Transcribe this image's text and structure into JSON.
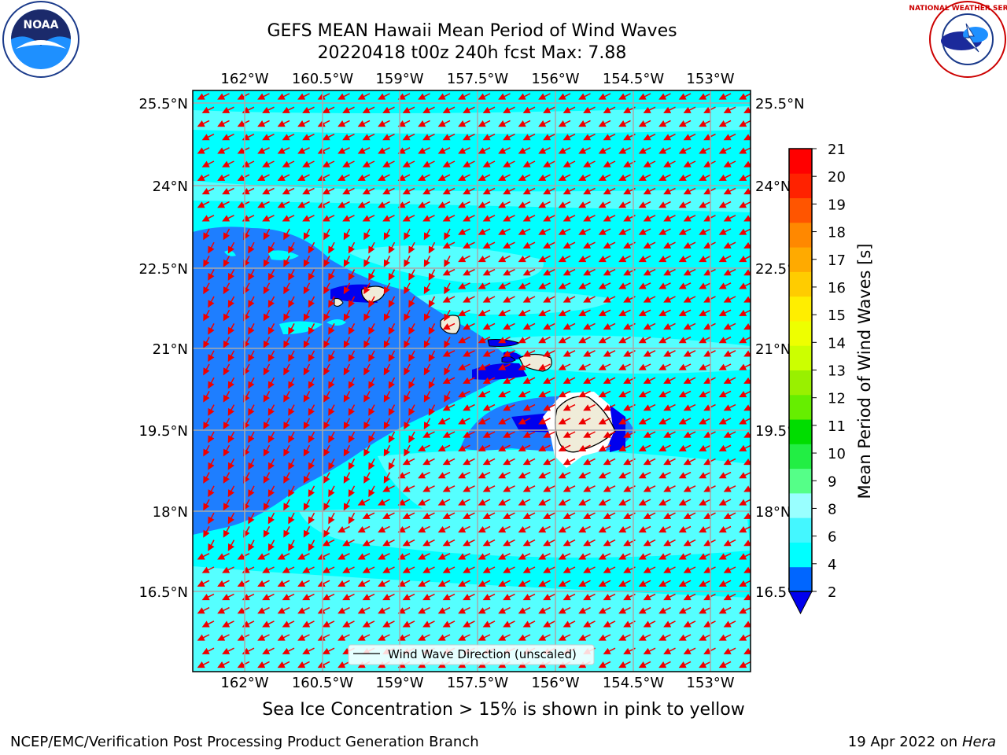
{
  "title_line1": "GEFS MEAN Hawaii Mean Period of Wind Waves",
  "title_line2": "20220418 t00z 240h fcst   Max: 7.88",
  "lon_labels": [
    "162°W",
    "160.5°W",
    "159°W",
    "157.5°W",
    "156°W",
    "154.5°W",
    "153°W"
  ],
  "lat_labels": [
    "25.5°N",
    "24°N",
    "22.5°N",
    "21°N",
    "19.5°N",
    "18°N",
    "16.5°N"
  ],
  "legend_label": "Wind Wave Direction (unscaled)",
  "colorbar": {
    "label": "Mean Period of Wind Waves [s]",
    "ticks": [
      "2",
      "4",
      "6",
      "8",
      "9",
      "10",
      "11",
      "12",
      "13",
      "14",
      "15",
      "16",
      "17",
      "18",
      "19",
      "20",
      "21"
    ],
    "colors": [
      "#0066ff",
      "#00ffff",
      "#44f7ff",
      "#99ffff",
      "#55ff88",
      "#22ee44",
      "#00dd00",
      "#66ee00",
      "#99f000",
      "#ccff00",
      "#eeff00",
      "#ffee00",
      "#ffcc00",
      "#ffaa00",
      "#ff8800",
      "#ff5500",
      "#ff2200",
      "#ff0000"
    ],
    "under_color": "#0000ee"
  },
  "field_colors": {
    "background": "#00ffff",
    "band_light": "#55ffff",
    "band_mid": "#1e7eff",
    "band_deep": "#0000ee",
    "land": "#f0ecd9",
    "arrow": "#ee0000",
    "grid": "#a9a9a9"
  },
  "sea_ice_note": "Sea Ice Concentration > 15% is shown in pink to yellow",
  "credit_left": "NCEP/EMC/Verification Post Processing Product Generation Branch",
  "credit_date": "19 Apr 2022 on ",
  "credit_host": "Hera",
  "logos": {
    "noaa_text": "NOAA",
    "noaa_ring": "NATIONAL OCEANIC AND ATMOSPHERIC ADMINISTRATION · U.S. DEPARTMENT OF COMMERCE",
    "nws_ring": "NATIONAL WEATHER SERVICE"
  }
}
